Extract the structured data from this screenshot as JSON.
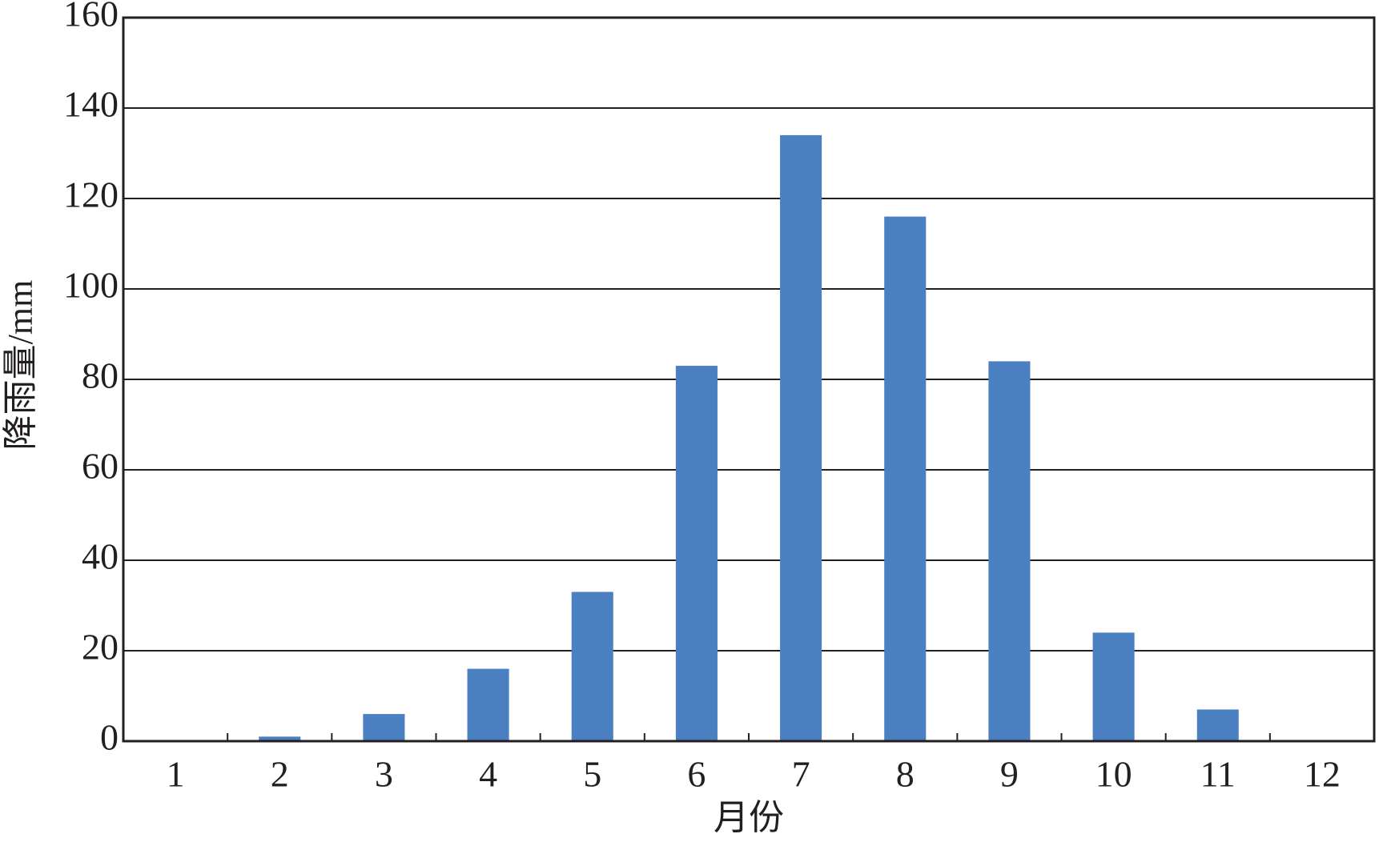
{
  "chart_data": {
    "type": "bar",
    "x_label": "月份",
    "y_label": "降雨量/mm",
    "categories": [
      "1",
      "2",
      "3",
      "4",
      "5",
      "6",
      "7",
      "8",
      "9",
      "10",
      "11",
      "12"
    ],
    "values": [
      0,
      1,
      6,
      16,
      33,
      83,
      134,
      116,
      84,
      24,
      7,
      0
    ],
    "color": "#4a7fc1",
    "ylim": [
      0,
      160
    ],
    "yticks": [
      0,
      20,
      40,
      60,
      80,
      100,
      120,
      140,
      160
    ],
    "grid": true
  }
}
